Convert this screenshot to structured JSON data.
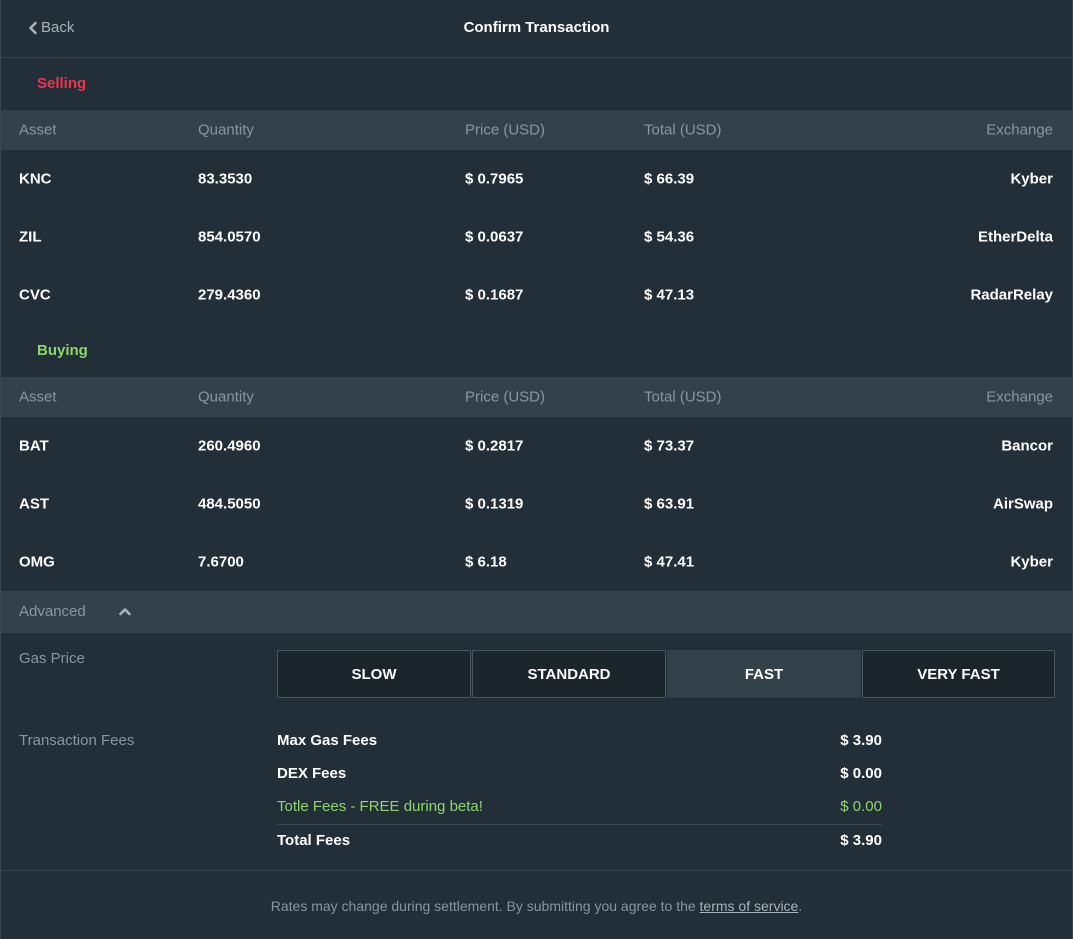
{
  "header": {
    "back_label": "Back",
    "title": "Confirm Transaction"
  },
  "columns": {
    "asset": "Asset",
    "quantity": "Quantity",
    "price": "Price (USD)",
    "total": "Total (USD)",
    "exchange": "Exchange"
  },
  "selling": {
    "label": "Selling",
    "rows": [
      {
        "asset": "KNC",
        "quantity": "83.3530",
        "price": "$ 0.7965",
        "total": "$ 66.39",
        "exchange": "Kyber"
      },
      {
        "asset": "ZIL",
        "quantity": "854.0570",
        "price": "$ 0.0637",
        "total": "$ 54.36",
        "exchange": "EtherDelta"
      },
      {
        "asset": "CVC",
        "quantity": "279.4360",
        "price": "$ 0.1687",
        "total": "$ 47.13",
        "exchange": "RadarRelay"
      }
    ]
  },
  "buying": {
    "label": "Buying",
    "rows": [
      {
        "asset": "BAT",
        "quantity": "260.4960",
        "price": "$ 0.2817",
        "total": "$ 73.37",
        "exchange": "Bancor"
      },
      {
        "asset": "AST",
        "quantity": "484.5050",
        "price": "$ 0.1319",
        "total": "$ 63.91",
        "exchange": "AirSwap"
      },
      {
        "asset": "OMG",
        "quantity": "7.6700",
        "price": "$ 6.18",
        "total": "$ 47.41",
        "exchange": "Kyber"
      }
    ]
  },
  "advanced": {
    "label": "Advanced"
  },
  "gas": {
    "label": "Gas Price",
    "options": [
      "SLOW",
      "STANDARD",
      "FAST",
      "VERY FAST"
    ],
    "selected": "FAST"
  },
  "fees": {
    "label": "Transaction Fees",
    "max_gas": {
      "label": "Max Gas Fees",
      "value": "$ 3.90"
    },
    "dex": {
      "label": "DEX Fees",
      "value": "$ 0.00"
    },
    "totle": {
      "label": "Totle Fees - FREE during beta!",
      "value": "$ 0.00"
    },
    "total": {
      "label": "Total Fees",
      "value": "$ 3.90"
    }
  },
  "footer": {
    "text": "Rates may change during settlement. By submitting you agree to the",
    "link": "terms of service",
    "end": "."
  },
  "colors": {
    "background": "#232f38",
    "header_row": "#33414b",
    "selling": "#f0334d",
    "buying": "#8ed66a"
  }
}
